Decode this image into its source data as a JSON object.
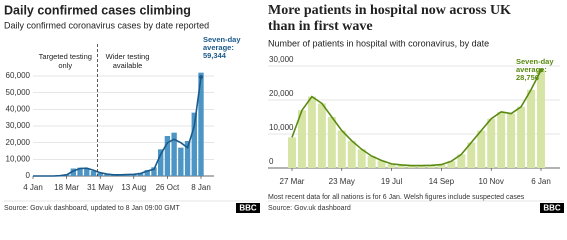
{
  "chart_data": [
    {
      "type": "bar-line",
      "title": "Daily confirmed cases climbing",
      "subtitle": "Daily confirmed coronavirus cases by date reported",
      "categories": [
        "4 Jan",
        null,
        null,
        null,
        null,
        "18 Mar",
        null,
        null,
        null,
        null,
        "31 May",
        null,
        null,
        null,
        null,
        "13 Aug",
        null,
        null,
        null,
        null,
        "26 Oct",
        null,
        null,
        null,
        null,
        "8 Jan"
      ],
      "values": [
        0,
        0,
        0,
        0,
        200,
        700,
        3000,
        4500,
        4700,
        3500,
        2000,
        1200,
        700,
        700,
        900,
        1000,
        1500,
        3000,
        4000,
        13000,
        20000,
        22000,
        20000,
        17000,
        30000,
        59344
      ],
      "daily_values": [
        0,
        0,
        0,
        0,
        300,
        1000,
        4500,
        5000,
        4200,
        3000,
        1800,
        1000,
        800,
        900,
        1100,
        1200,
        1900,
        3500,
        5200,
        16000,
        24000,
        26000,
        17000,
        21000,
        38000,
        62000
      ],
      "color": "#1b5b8c",
      "bar_color": "#4d95c4",
      "ylim": [
        0,
        60000
      ],
      "yticks": [
        0,
        {
          "value": 10000,
          "label": "10,000"
        },
        {
          "value": 20000,
          "label": "20,000"
        },
        {
          "value": 30000,
          "label": "30,000"
        },
        {
          "value": 40000,
          "label": "40,000"
        },
        {
          "value": 50000,
          "label": "50,000"
        },
        {
          "value": 60000,
          "label": "60,000"
        }
      ],
      "grid": true,
      "annotations": [
        [
          "Targeted testing",
          "only"
        ],
        [
          "Wider testing",
          "available"
        ]
      ],
      "average_label": [
        "Seven-day",
        "average:"
      ],
      "value_label": "59,344",
      "source": "Source: Gov.uk dashboard, updated to 8 Jan 09:00 GMT",
      "logo": "BBC"
    },
    {
      "type": "bar-line",
      "title": [
        "More patients in hospital now across UK",
        "than in first wave"
      ],
      "subtitle": "Number of patients in hospital with coronavirus, by date",
      "categories": [
        "27 Mar",
        null,
        null,
        null,
        null,
        "23 May",
        null,
        null,
        null,
        null,
        "19 Jul",
        null,
        null,
        null,
        null,
        "14 Sep",
        null,
        null,
        null,
        null,
        "10 Nov",
        null,
        null,
        null,
        null,
        "6 Jan"
      ],
      "values": [
        9000,
        17000,
        21000,
        19000,
        15000,
        11000,
        8000,
        5500,
        3500,
        2200,
        1200,
        900,
        700,
        700,
        800,
        1000,
        2000,
        4000,
        7500,
        11000,
        14500,
        16500,
        16000,
        18000,
        23000,
        28756
      ],
      "color": "#5a8a12",
      "bar_color": "#d6e5a6",
      "ylim": [
        0,
        30000
      ],
      "yticks": [
        0,
        {
          "value": 10000,
          "label": "10,000"
        },
        {
          "value": 20000,
          "label": "20,000"
        },
        {
          "value": 30000,
          "label": "30,000"
        }
      ],
      "grid": true,
      "average_label": [
        "Seven-day",
        "average:"
      ],
      "value_label": "28,756",
      "note": "Most recent data for all nations is for 6 Jan. Welsh figures include suspected cases",
      "source": "Source: Gov.uk dashboard",
      "logo": "BBC"
    }
  ]
}
